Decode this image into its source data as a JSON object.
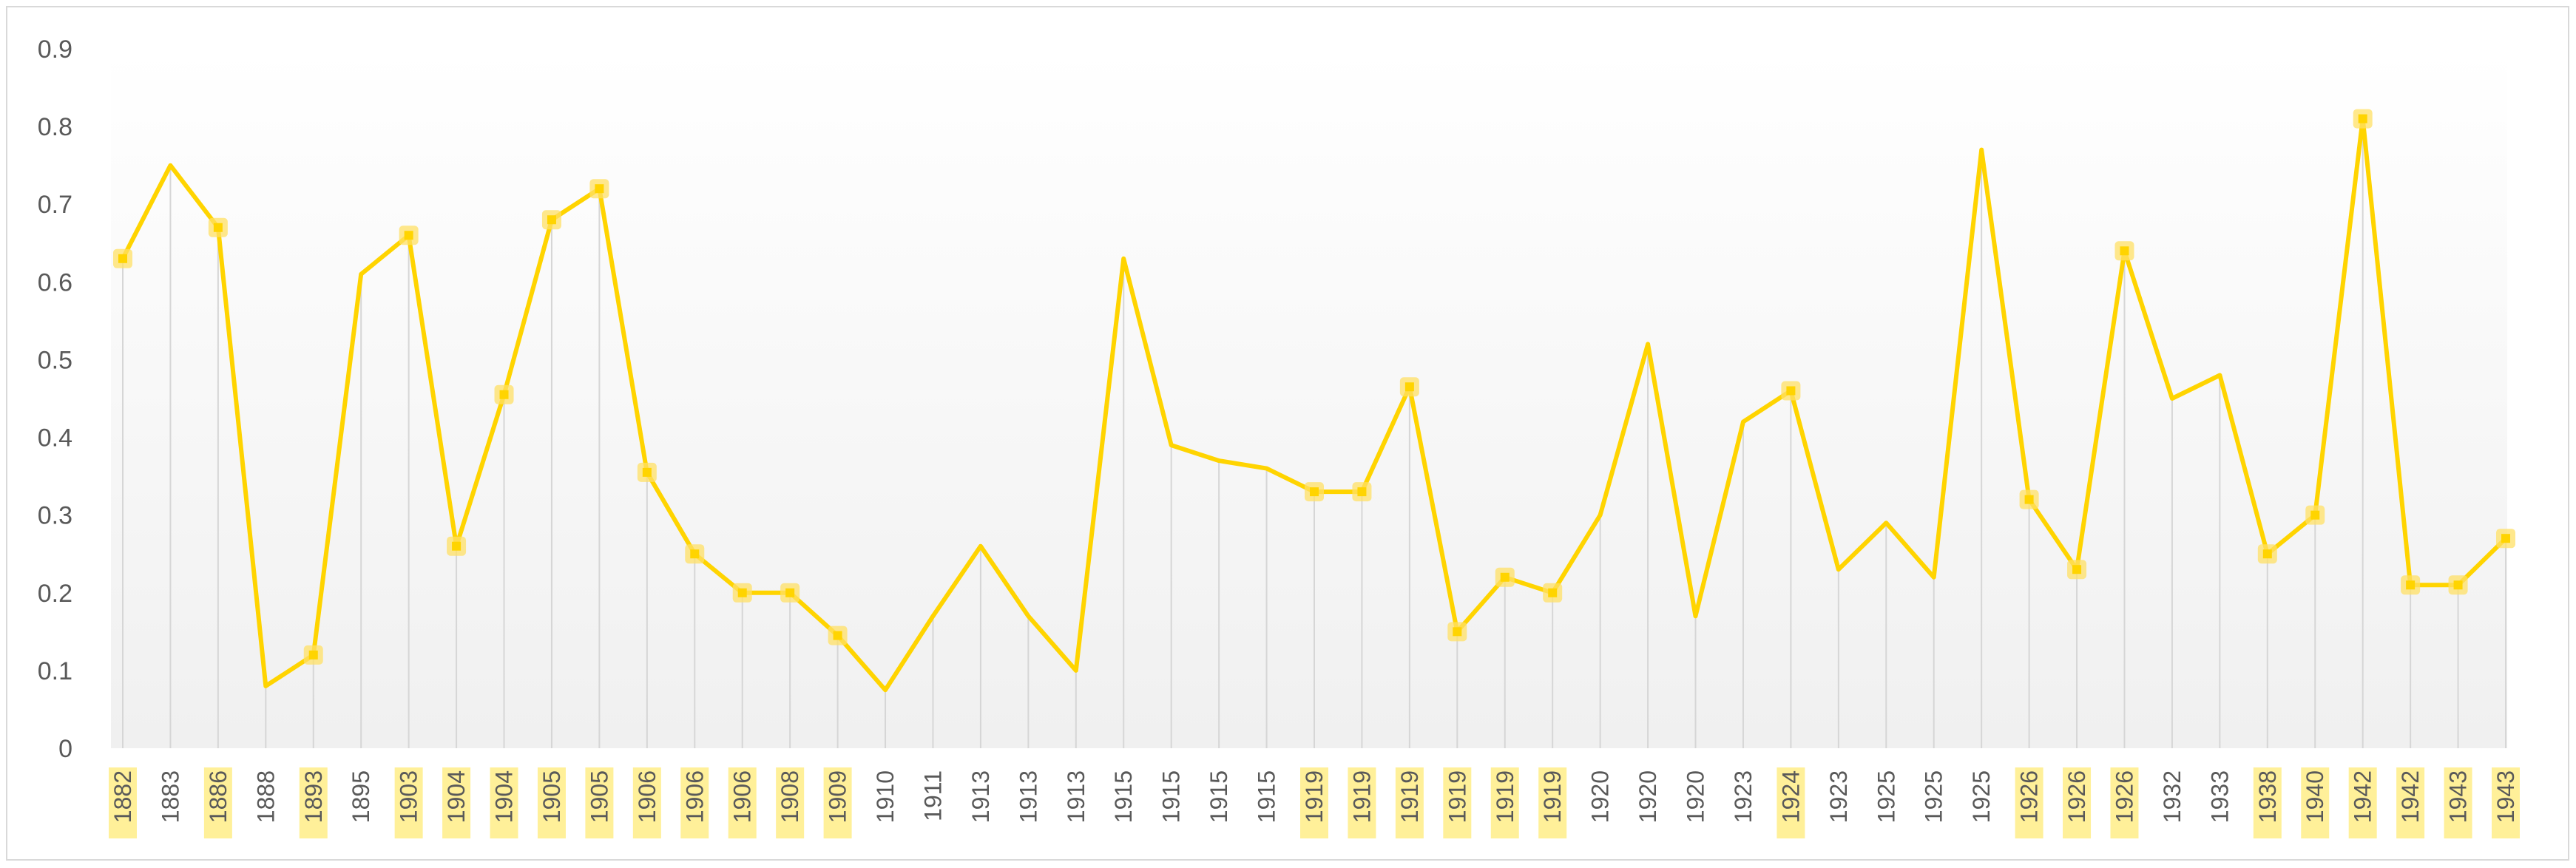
{
  "chart_data": {
    "type": "line",
    "title": "",
    "xlabel": "",
    "ylabel": "",
    "ylim": [
      0,
      0.9
    ],
    "yticks": [
      "0",
      "0.1",
      "0.2",
      "0.3",
      "0.4",
      "0.5",
      "0.6",
      "0.7",
      "0.8",
      "0.9"
    ],
    "grid": false,
    "drop_lines": true,
    "categories": [
      "1882",
      "1883",
      "1886",
      "1888",
      "1893",
      "1895",
      "1903",
      "1904",
      "1904",
      "1905",
      "1905",
      "1906",
      "1906",
      "1906",
      "1908",
      "1909",
      "1910",
      "1911",
      "1913",
      "1913",
      "1913",
      "1915",
      "1915",
      "1915",
      "1915",
      "1919",
      "1919",
      "1919",
      "1919",
      "1919",
      "1919",
      "1920",
      "1920",
      "1920",
      "1923",
      "1924",
      "1923",
      "1925",
      "1925",
      "1925",
      "1926",
      "1926",
      "1926",
      "1932",
      "1933",
      "1938",
      "1940",
      "1942",
      "1942",
      "1943",
      "1943"
    ],
    "highlighted": [
      true,
      false,
      true,
      false,
      true,
      false,
      true,
      true,
      true,
      true,
      true,
      true,
      true,
      true,
      true,
      true,
      false,
      false,
      false,
      false,
      false,
      false,
      false,
      false,
      false,
      true,
      true,
      true,
      true,
      true,
      true,
      false,
      false,
      false,
      false,
      true,
      false,
      false,
      false,
      false,
      true,
      true,
      true,
      false,
      false,
      true,
      true,
      true,
      true,
      true,
      true
    ],
    "series": [
      {
        "values": [
          0.63,
          0.75,
          0.67,
          0.08,
          0.12,
          0.61,
          0.66,
          0.26,
          0.455,
          0.68,
          0.72,
          0.355,
          0.25,
          0.2,
          0.2,
          0.145,
          0.075,
          0.17,
          0.26,
          0.17,
          0.1,
          0.63,
          0.39,
          0.37,
          0.36,
          0.33,
          0.33,
          0.465,
          0.15,
          0.22,
          0.2,
          0.3,
          0.52,
          0.17,
          0.42,
          0.46,
          0.23,
          0.29,
          0.22,
          0.77,
          0.32,
          0.23,
          0.64,
          0.45,
          0.48,
          0.25,
          0.3,
          0.81,
          0.21,
          0.21,
          0.27
        ],
        "color": "#ffd400"
      }
    ],
    "colors": {
      "line": "#ffd400",
      "marker_glow": "#ffe066",
      "label_highlight": "#fff099",
      "drop_line": "#d6d6d6",
      "axis_text": "#595959",
      "frame": "#d9d9d9"
    }
  }
}
